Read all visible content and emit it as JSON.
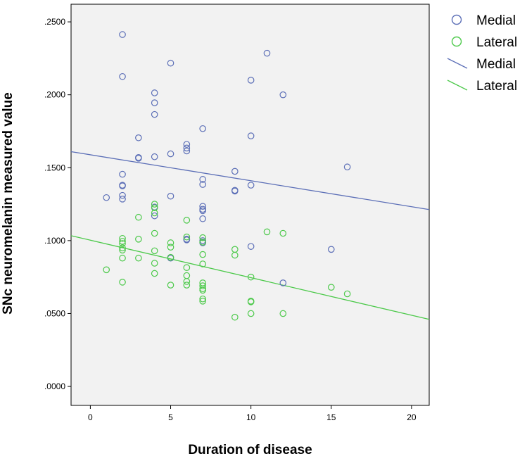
{
  "chart_data": {
    "type": "scatter",
    "xlabel": "Duration of disease",
    "ylabel": "SNc neuromelanin measured value",
    "xlim": [
      -1.2,
      21.1
    ],
    "ylim": [
      -0.013,
      0.2621
    ],
    "xticks": [
      0,
      5,
      10,
      15,
      20
    ],
    "xtick_labels": [
      "0",
      "5",
      "10",
      "15",
      "20"
    ],
    "yticks": [
      0.0,
      0.05,
      0.1,
      0.15,
      0.2,
      0.25
    ],
    "ytick_labels": [
      ".0000",
      ".0500",
      ".1000",
      ".1500",
      ".2000",
      ".2500"
    ],
    "grid": false,
    "background": "#f2f2f2",
    "legend_position": "outside-right-top",
    "series": [
      {
        "name": "Medial",
        "kind": "points",
        "color": "#5c6fb7",
        "points": [
          [
            1,
            0.1295
          ],
          [
            2,
            0.2413
          ],
          [
            2,
            0.2125
          ],
          [
            2,
            0.1455
          ],
          [
            2,
            0.138
          ],
          [
            2,
            0.1375
          ],
          [
            2,
            0.131
          ],
          [
            2,
            0.1285
          ],
          [
            3,
            0.1705
          ],
          [
            3,
            0.157
          ],
          [
            3,
            0.1565
          ],
          [
            4,
            0.2013
          ],
          [
            4,
            0.1945
          ],
          [
            4,
            0.1865
          ],
          [
            4,
            0.1575
          ],
          [
            4,
            0.123
          ],
          [
            4,
            0.117
          ],
          [
            5,
            0.2217
          ],
          [
            5,
            0.1595
          ],
          [
            5,
            0.1305
          ],
          [
            5,
            0.088
          ],
          [
            6,
            0.166
          ],
          [
            6,
            0.1635
          ],
          [
            6,
            0.1615
          ],
          [
            6,
            0.101
          ],
          [
            6,
            0.1005
          ],
          [
            7,
            0.1768
          ],
          [
            7,
            0.142
          ],
          [
            7,
            0.1385
          ],
          [
            7,
            0.1235
          ],
          [
            7,
            0.1215
          ],
          [
            7,
            0.1205
          ],
          [
            7,
            0.115
          ],
          [
            7,
            0.1
          ],
          [
            7,
            0.0985
          ],
          [
            9,
            0.1475
          ],
          [
            9,
            0.1345
          ],
          [
            9,
            0.134
          ],
          [
            10,
            0.21
          ],
          [
            10,
            0.1718
          ],
          [
            10,
            0.138
          ],
          [
            10,
            0.096
          ],
          [
            11,
            0.2285
          ],
          [
            12,
            0.2
          ],
          [
            12,
            0.071
          ],
          [
            15,
            0.094
          ],
          [
            16,
            0.1505
          ]
        ]
      },
      {
        "name": "Lateral",
        "kind": "points",
        "color": "#4cc94a",
        "points": [
          [
            1,
            0.08
          ],
          [
            2,
            0.1015
          ],
          [
            2,
            0.0995
          ],
          [
            2,
            0.098
          ],
          [
            2,
            0.095
          ],
          [
            2,
            0.0935
          ],
          [
            2,
            0.088
          ],
          [
            2,
            0.0715
          ],
          [
            3,
            0.116
          ],
          [
            3,
            0.101
          ],
          [
            3,
            0.088
          ],
          [
            4,
            0.125
          ],
          [
            4,
            0.1225
          ],
          [
            4,
            0.119
          ],
          [
            4,
            0.105
          ],
          [
            4,
            0.093
          ],
          [
            4,
            0.0845
          ],
          [
            4,
            0.0775
          ],
          [
            5,
            0.0985
          ],
          [
            5,
            0.0955
          ],
          [
            5,
            0.0885
          ],
          [
            5,
            0.0695
          ],
          [
            6,
            0.114
          ],
          [
            6,
            0.1025
          ],
          [
            6,
            0.0815
          ],
          [
            6,
            0.076
          ],
          [
            6,
            0.072
          ],
          [
            6,
            0.0695
          ],
          [
            7,
            0.102
          ],
          [
            7,
            0.099
          ],
          [
            7,
            0.0905
          ],
          [
            7,
            0.084
          ],
          [
            7,
            0.071
          ],
          [
            7,
            0.069
          ],
          [
            7,
            0.067
          ],
          [
            7,
            0.066
          ],
          [
            7,
            0.06
          ],
          [
            7,
            0.0585
          ],
          [
            9,
            0.094
          ],
          [
            9,
            0.09
          ],
          [
            9,
            0.0475
          ],
          [
            10,
            0.075
          ],
          [
            10,
            0.0585
          ],
          [
            10,
            0.058
          ],
          [
            10,
            0.05
          ],
          [
            11,
            0.106
          ],
          [
            12,
            0.105
          ],
          [
            12,
            0.05
          ],
          [
            15,
            0.068
          ],
          [
            16,
            0.0635
          ]
        ]
      },
      {
        "name": "Medial",
        "kind": "fit-line",
        "color": "#5c6fb7",
        "line": [
          [
            -1.2,
            0.161
          ],
          [
            21.1,
            0.1213
          ]
        ]
      },
      {
        "name": "Lateral",
        "kind": "fit-line",
        "color": "#4cc94a",
        "line": [
          [
            -1.2,
            0.1034
          ],
          [
            21.1,
            0.046
          ]
        ]
      }
    ]
  }
}
